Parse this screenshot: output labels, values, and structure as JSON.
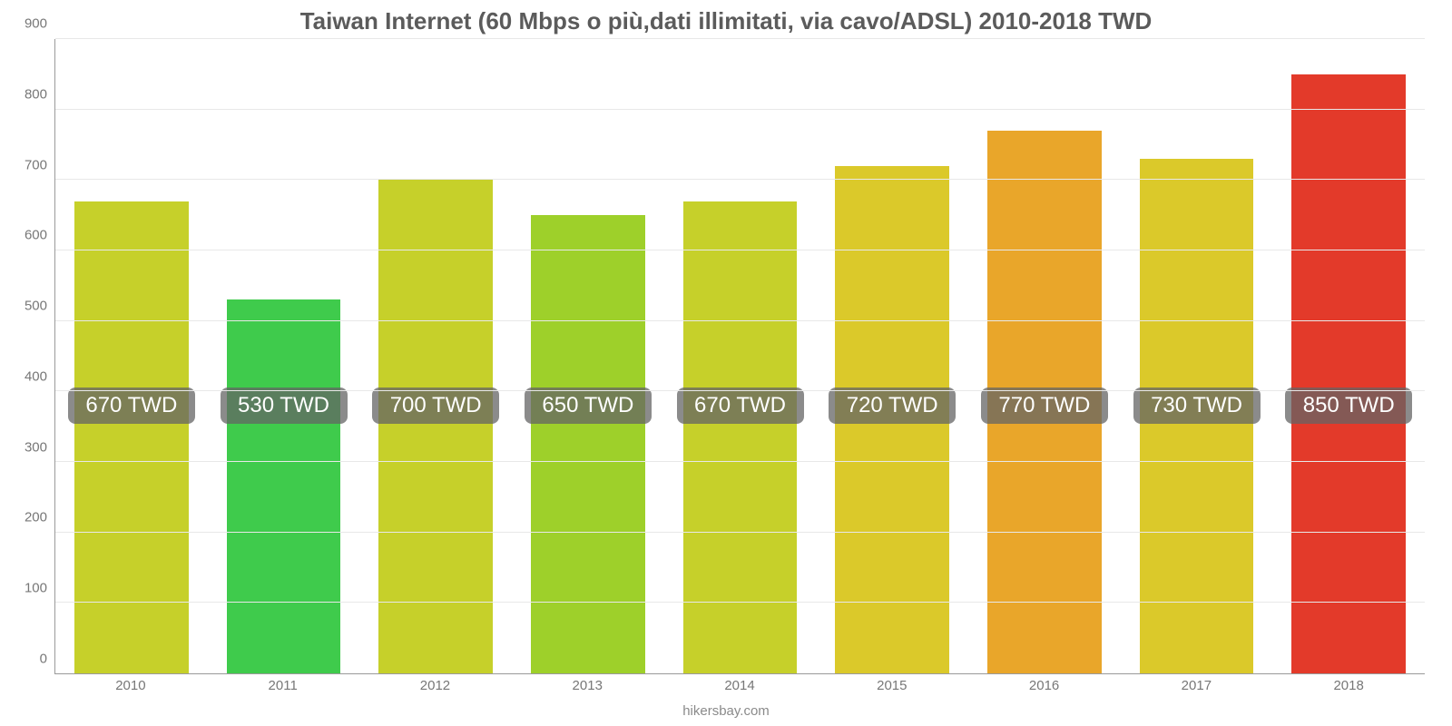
{
  "chart": {
    "type": "bar",
    "title": "Taiwan Internet (60 Mbps o più,dati illimitati, via cavo/ADSL) 2010-2018 TWD",
    "title_fontsize": 26,
    "title_color": "#5b5b5b",
    "categories": [
      "2010",
      "2011",
      "2012",
      "2013",
      "2014",
      "2015",
      "2016",
      "2017",
      "2018"
    ],
    "values": [
      670,
      530,
      700,
      650,
      670,
      720,
      770,
      730,
      850
    ],
    "value_labels": [
      "670 TWD",
      "530 TWD",
      "700 TWD",
      "650 TWD",
      "670 TWD",
      "720 TWD",
      "770 TWD",
      "730 TWD",
      "850 TWD"
    ],
    "bar_colors": [
      "#c6d02a",
      "#3fcb4c",
      "#c6d02a",
      "#9ed02a",
      "#c6d02a",
      "#dbc92a",
      "#e9a62a",
      "#dbc92a",
      "#e33a2a"
    ],
    "ylim": [
      0,
      900
    ],
    "ytick_step": 100,
    "yticks": [
      0,
      100,
      200,
      300,
      400,
      500,
      600,
      700,
      800,
      900
    ],
    "label_center_value": 380,
    "label_fontsize": 24,
    "label_bg": "rgba(100,100,100,0.75)",
    "label_color": "#ffffff",
    "axis_label_fontsize": 15,
    "axis_label_color": "#777777",
    "grid_color": "#e8e8e8",
    "axis_line_color": "#9a9a9a",
    "background_color": "#ffffff",
    "bar_width": 0.75,
    "footer": "hikersbay.com",
    "footer_color": "#8a8a8a",
    "footer_fontsize": 15
  }
}
